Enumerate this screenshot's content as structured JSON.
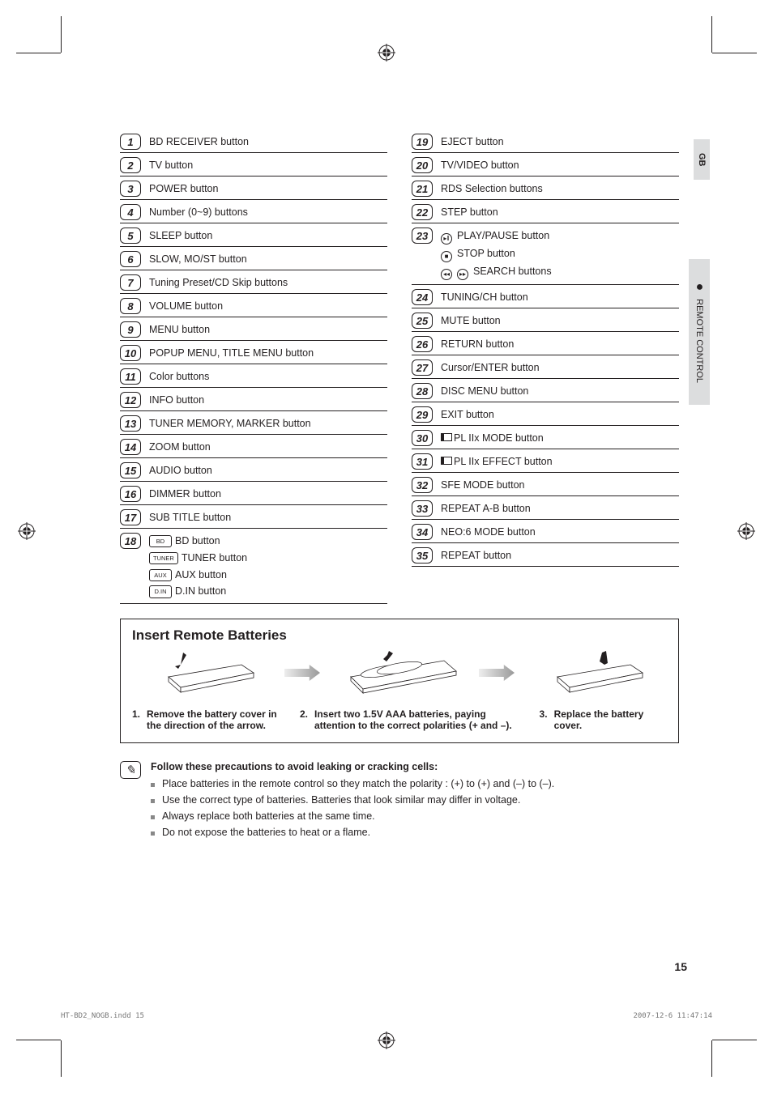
{
  "side_tabs": {
    "lang": "GB",
    "section": "REMOTE CONTROL"
  },
  "left_items": [
    {
      "n": "1",
      "label": "BD RECEIVER button"
    },
    {
      "n": "2",
      "label": "TV button"
    },
    {
      "n": "3",
      "label": "POWER button"
    },
    {
      "n": "4",
      "label": "Number (0~9) buttons"
    },
    {
      "n": "5",
      "label": "SLEEP button"
    },
    {
      "n": "6",
      "label": "SLOW, MO/ST button"
    },
    {
      "n": "7",
      "label": "Tuning Preset/CD Skip buttons"
    },
    {
      "n": "8",
      "label": "VOLUME button"
    },
    {
      "n": "9",
      "label": "MENU button"
    },
    {
      "n": "10",
      "label": "POPUP MENU, TITLE MENU button"
    },
    {
      "n": "11",
      "label": "Color buttons"
    },
    {
      "n": "12",
      "label": "INFO button"
    },
    {
      "n": "13",
      "label": "TUNER MEMORY, MARKER button"
    },
    {
      "n": "14",
      "label": "ZOOM button"
    },
    {
      "n": "15",
      "label": "AUDIO button"
    },
    {
      "n": "16",
      "label": "DIMMER button"
    },
    {
      "n": "17",
      "label": "SUB TITLE button"
    }
  ],
  "item18": {
    "n": "18",
    "lines": [
      {
        "badge": "BD",
        "text": "BD button"
      },
      {
        "badge": "TUNER",
        "text": "TUNER button"
      },
      {
        "badge": "AUX",
        "text": "AUX button"
      },
      {
        "badge": "D.IN",
        "text": "D.IN button"
      }
    ]
  },
  "right_items_a": [
    {
      "n": "19",
      "label": "EJECT button"
    },
    {
      "n": "20",
      "label": "TV/VIDEO button"
    },
    {
      "n": "21",
      "label": "RDS Selection buttons"
    },
    {
      "n": "22",
      "label": "STEP button"
    }
  ],
  "item23": {
    "n": "23",
    "lines": [
      {
        "icon": "▸ǁ",
        "text": "PLAY/PAUSE button"
      },
      {
        "icon": "■",
        "text": "STOP button"
      },
      {
        "icon2": true,
        "text": "SEARCH buttons"
      }
    ]
  },
  "right_items_b": [
    {
      "n": "24",
      "label": "TUNING/CH button"
    },
    {
      "n": "25",
      "label": "MUTE button"
    },
    {
      "n": "26",
      "label": "RETURN button"
    },
    {
      "n": "27",
      "label": "Cursor/ENTER button"
    },
    {
      "n": "28",
      "label": "DISC MENU button"
    },
    {
      "n": "29",
      "label": "EXIT button"
    },
    {
      "n": "30",
      "label": "PL IIx MODE button",
      "pl2": true
    },
    {
      "n": "31",
      "label": "PL IIx EFFECT button",
      "pl2": true
    },
    {
      "n": "32",
      "label": "SFE MODE button"
    },
    {
      "n": "33",
      "label": "REPEAT A-B button"
    },
    {
      "n": "34",
      "label": "NEO:6 MODE button"
    },
    {
      "n": "35",
      "label": "REPEAT button"
    }
  ],
  "battery": {
    "title": "Insert Remote Batteries",
    "steps": [
      {
        "n": "1.",
        "text": "Remove the battery cover in the direction of the arrow."
      },
      {
        "n": "2.",
        "text": "Insert two 1.5V AAA batteries, paying attention to the correct polarities (+ and –)."
      },
      {
        "n": "3.",
        "text": "Replace the battery cover."
      }
    ]
  },
  "precautions": {
    "title": "Follow these precautions to avoid leaking or cracking cells:",
    "items": [
      "Place batteries in the remote control so they match the polarity : (+) to (+) and (–) to (–).",
      "Use the correct type of batteries. Batteries that look similar may differ in voltage.",
      "Always replace both batteries at the same time.",
      "Do not expose the batteries to heat or a flame."
    ]
  },
  "page_number": "15",
  "footer": {
    "left": "HT-BD2_NOGB.indd   15",
    "right": "2007-12-6   11:47:14"
  },
  "colors": {
    "tab_bg": "#dcddde",
    "text": "#231f20"
  }
}
